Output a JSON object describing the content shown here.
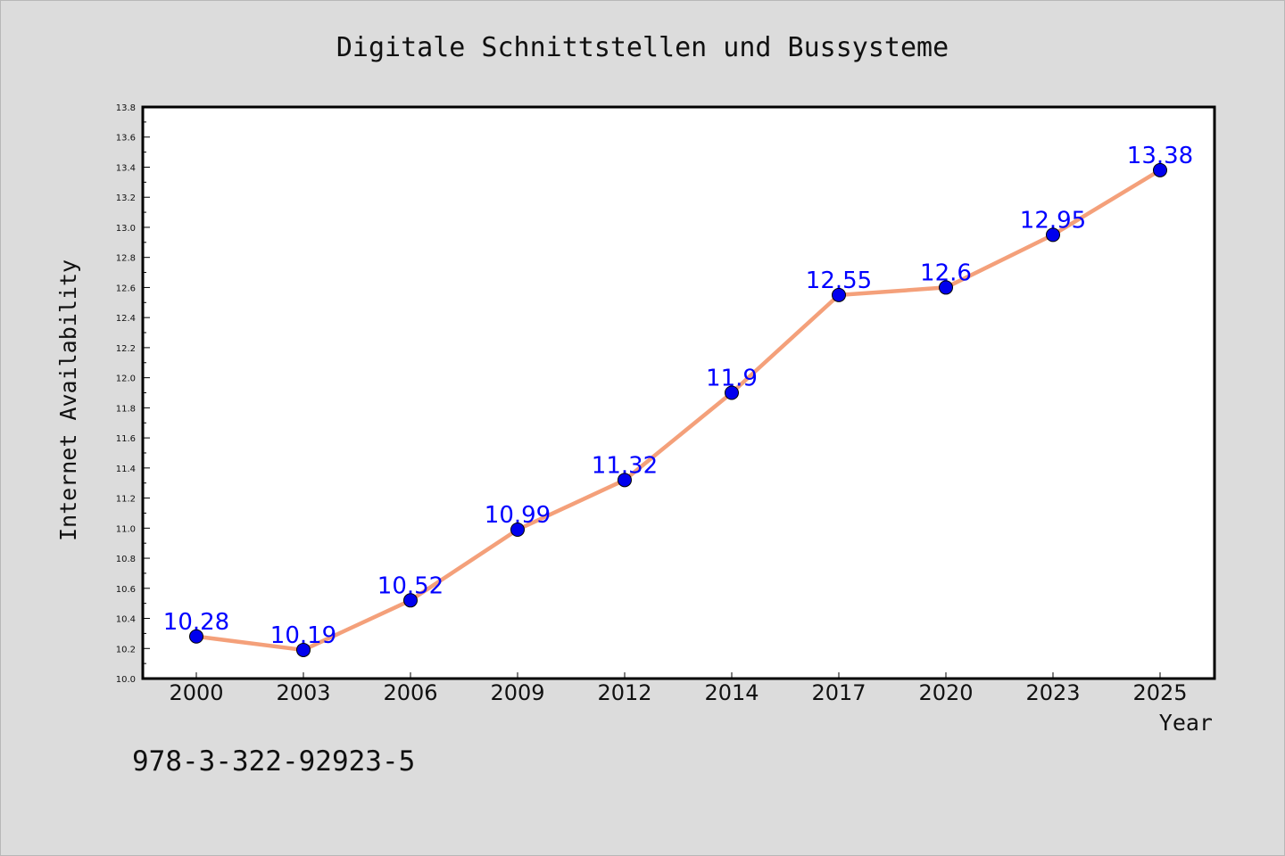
{
  "chart_data": {
    "type": "line",
    "title": "Digitale Schnittstellen und Bussysteme",
    "xlabel": "Year",
    "ylabel": "Internet Availability",
    "categories": [
      "2000",
      "2003",
      "2006",
      "2009",
      "2012",
      "2014",
      "2017",
      "2020",
      "2023",
      "2025"
    ],
    "series": [
      {
        "values": [
          10.28,
          10.19,
          10.52,
          10.99,
          11.32,
          11.9,
          12.55,
          12.6,
          12.95,
          13.38
        ],
        "labels": [
          "10.28",
          "10.19",
          "10.52",
          "10.99",
          "11.32",
          "11.9",
          "12.55",
          "12.6",
          "12.95",
          "13.38"
        ],
        "line_color": "#f4a07a",
        "marker_color": "#0000ee"
      }
    ],
    "ylim": [
      10.0,
      13.8
    ],
    "yticks": [
      "10.0",
      "10.2",
      "10.4",
      "10.6",
      "10.8",
      "11.0",
      "11.2",
      "11.4",
      "11.6",
      "11.8",
      "12.0",
      "12.2",
      "12.4",
      "12.6",
      "12.8",
      "13.0",
      "13.2",
      "13.4",
      "13.6",
      "13.8"
    ],
    "grid": false,
    "data_labels": true,
    "colors": {
      "background": "#dcdcdc",
      "plot_area": "#ffffff",
      "data_label": "#0000ff"
    }
  },
  "footer": {
    "isbn": "978-3-322-92923-5"
  }
}
